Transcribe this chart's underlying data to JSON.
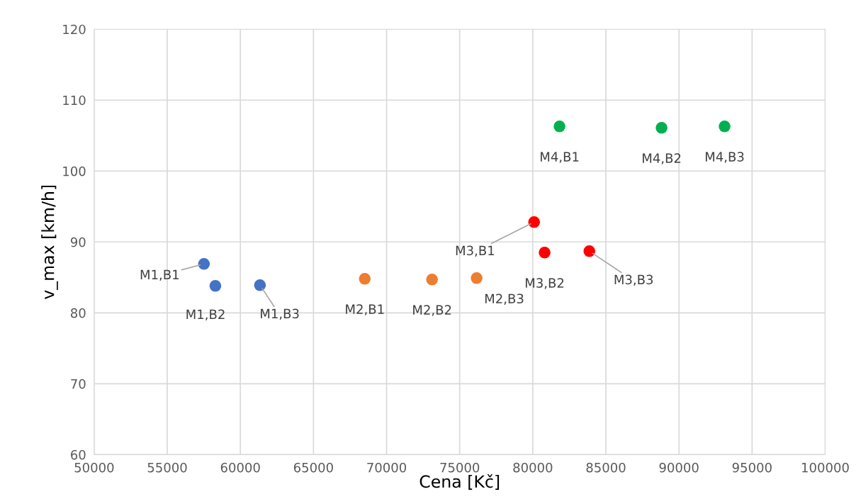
{
  "chart_data": {
    "type": "scatter",
    "xlabel": "Cena [Kč]",
    "ylabel": "v_max [km/h]",
    "xlim": [
      50000,
      100000
    ],
    "ylim": [
      60,
      120
    ],
    "xticks": [
      50000,
      55000,
      60000,
      65000,
      70000,
      75000,
      80000,
      85000,
      90000,
      95000,
      100000
    ],
    "yticks": [
      60,
      70,
      80,
      90,
      100,
      110,
      120
    ],
    "grid": true,
    "marker": "circle",
    "series": [
      {
        "color": "#4472c4",
        "x": [
          57510,
          58290,
          61340
        ],
        "values": [
          86.9,
          83.8,
          83.9
        ],
        "value_labels": [
          "M1,B1",
          "M1,B2",
          "M1,B3"
        ]
      },
      {
        "color": "#ed7d31",
        "x": [
          68510,
          73110,
          76160
        ],
        "values": [
          84.8,
          84.7,
          84.9
        ],
        "value_labels": [
          "M2,B1",
          "M2,B2",
          "M2,B3"
        ]
      },
      {
        "color": "#ff0000",
        "x": [
          80090,
          80810,
          83870
        ],
        "values": [
          92.8,
          88.5,
          88.7
        ],
        "value_labels": [
          "M3,B1",
          "M3,B2",
          "M3,B3"
        ]
      },
      {
        "color": "#00b050",
        "x": [
          81830,
          88810,
          93120
        ],
        "values": [
          106.3,
          106.1,
          106.3
        ],
        "value_labels": [
          "M4,B1",
          "M4,B2",
          "M4,B3"
        ]
      }
    ]
  }
}
